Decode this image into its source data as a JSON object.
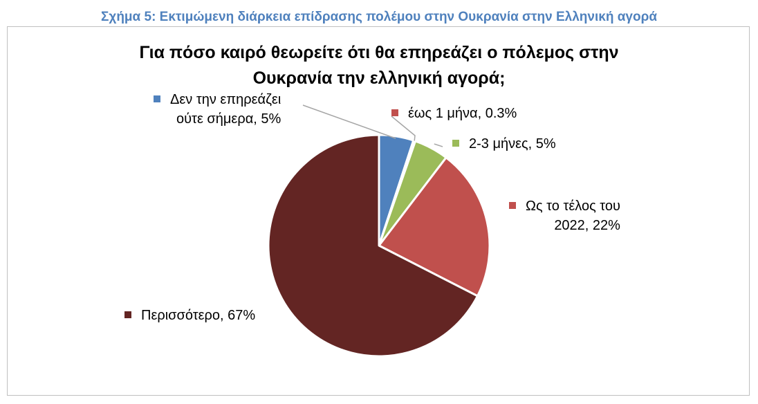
{
  "figure_caption": "Σχήμα 5: Εκτιμώμενη διάρκεια επίδρασης πολέμου στην Ουκρανία στην Ελληνική αγορά",
  "chart_data": {
    "type": "pie",
    "title": "Για πόσο καιρό θεωρείτε ότι θα επηρεάζει ο πόλεμος στην Ουκρανία την ελληνική αγορά;",
    "title_lines": [
      "Για πόσο καιρό θεωρείτε ότι θα επηρεάζει ο πόλεμος στην",
      "Ουκρανία την ελληνική αγορά;"
    ],
    "start_angle_deg": 0,
    "direction": "clockwise",
    "slices": [
      {
        "label": "Δεν την επηρεάζει ούτε σήμερα",
        "value": 5,
        "color": "#4f81bd",
        "label_lines": [
          "Δεν την επηρεάζει",
          "ούτε σήμερα, 5%"
        ]
      },
      {
        "label": "έως 1 μήνα",
        "value": 0.3,
        "color": "#c0504d",
        "label_lines": [
          "έως 1 μήνα, 0.3%"
        ]
      },
      {
        "label": "2-3 μήνες",
        "value": 5,
        "color": "#9bbb59",
        "label_lines": [
          "2-3 μήνες, 5%"
        ]
      },
      {
        "label": "Ως το τέλος του 2022",
        "value": 22,
        "color": "#c0504d",
        "label_lines": [
          "Ως το τέλος του",
          "2022, 22%"
        ]
      },
      {
        "label": "Περισσότερο",
        "value": 67,
        "color": "#632523",
        "label_lines": [
          "Περισσότερο, 67%"
        ]
      }
    ]
  }
}
